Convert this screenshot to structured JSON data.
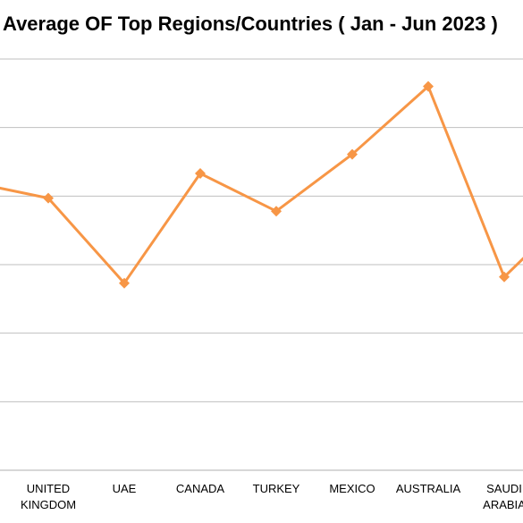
{
  "chart_data": {
    "type": "line",
    "title": "Average OF Top Regions/Countries ( Jan - Jun 2023 )",
    "categories": [
      [
        "",
        ""
      ],
      [
        "UNITED",
        "KINGDOM"
      ],
      [
        "UAE",
        ""
      ],
      [
        "CANADA",
        ""
      ],
      [
        "TURKEY",
        ""
      ],
      [
        "MEXICO",
        ""
      ],
      [
        "AUSTRALIA",
        ""
      ],
      [
        "SAUDI",
        "ARABIA"
      ],
      [
        "",
        ""
      ]
    ],
    "values": [
      4.2,
      3.97,
      2.73,
      4.33,
      3.78,
      4.61,
      5.6,
      2.82,
      3.9
    ],
    "ylim": [
      0,
      6
    ],
    "grid": true,
    "series_color": "#F79646",
    "grid_color": "#BFBFBF"
  }
}
